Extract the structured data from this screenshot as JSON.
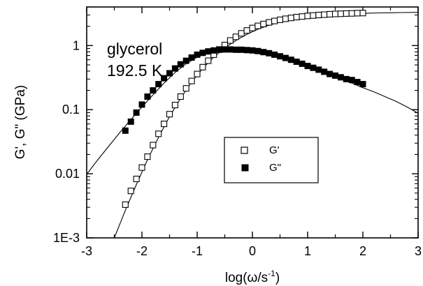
{
  "chart_data": {
    "type": "scatter",
    "xlabel": "log(ω/s",
    "xlabel_sup": "-1",
    "xlabel_close": ")",
    "ylabel": "G', G\" (GPa)",
    "xlim": [
      -3,
      3
    ],
    "ylim": [
      0.001,
      4
    ],
    "yscale": "log",
    "grid": false,
    "x_ticks": [
      -3,
      -2,
      -1,
      0,
      1,
      2,
      3
    ],
    "x_tick_labels": [
      "-3",
      "-2",
      "-1",
      "0",
      "1",
      "2",
      "3"
    ],
    "y_ticks": [
      0.001,
      0.01,
      0.1,
      1
    ],
    "y_tick_labels": [
      "1E-3",
      "0.01",
      "0.1",
      "1"
    ],
    "annotation": [
      "glycerol",
      "192.5 K"
    ],
    "legend": {
      "position": "center",
      "entries": [
        {
          "label": "G'",
          "marker": "open-square"
        },
        {
          "label": "G\"",
          "marker": "filled-square"
        }
      ]
    },
    "series": [
      {
        "name": "G'",
        "marker": "open-square",
        "x": [
          -2.3,
          -2.2,
          -2.1,
          -2.0,
          -1.9,
          -1.8,
          -1.7,
          -1.6,
          -1.5,
          -1.4,
          -1.3,
          -1.2,
          -1.1,
          -1.0,
          -0.9,
          -0.8,
          -0.7,
          -0.6,
          -0.5,
          -0.4,
          -0.3,
          -0.2,
          -0.1,
          0.0,
          0.1,
          0.2,
          0.3,
          0.4,
          0.5,
          0.6,
          0.7,
          0.8,
          0.9,
          1.0,
          1.1,
          1.2,
          1.3,
          1.4,
          1.5,
          1.6,
          1.7,
          1.8,
          1.9,
          2.0
        ],
        "y": [
          0.0033,
          0.0054,
          0.0083,
          0.0125,
          0.0185,
          0.028,
          0.042,
          0.06,
          0.085,
          0.118,
          0.16,
          0.215,
          0.28,
          0.36,
          0.46,
          0.58,
          0.72,
          0.87,
          1.02,
          1.2,
          1.37,
          1.55,
          1.72,
          1.88,
          2.03,
          2.17,
          2.3,
          2.42,
          2.52,
          2.62,
          2.7,
          2.78,
          2.84,
          2.9,
          2.95,
          3.0,
          3.04,
          3.08,
          3.11,
          3.14,
          3.16,
          3.18,
          3.2,
          3.22
        ]
      },
      {
        "name": "G\"",
        "marker": "filled-square",
        "x": [
          -2.3,
          -2.2,
          -2.1,
          -2.0,
          -1.9,
          -1.8,
          -1.7,
          -1.6,
          -1.5,
          -1.4,
          -1.3,
          -1.2,
          -1.1,
          -1.0,
          -0.9,
          -0.8,
          -0.7,
          -0.6,
          -0.5,
          -0.4,
          -0.3,
          -0.2,
          -0.1,
          0.0,
          0.1,
          0.2,
          0.3,
          0.4,
          0.5,
          0.6,
          0.7,
          0.8,
          0.9,
          1.0,
          1.1,
          1.2,
          1.3,
          1.4,
          1.5,
          1.6,
          1.7,
          1.8,
          1.9,
          2.0
        ],
        "y": [
          0.047,
          0.065,
          0.09,
          0.12,
          0.16,
          0.2,
          0.25,
          0.31,
          0.37,
          0.44,
          0.51,
          0.58,
          0.65,
          0.72,
          0.77,
          0.81,
          0.84,
          0.86,
          0.87,
          0.87,
          0.86,
          0.86,
          0.85,
          0.84,
          0.82,
          0.79,
          0.76,
          0.72,
          0.68,
          0.64,
          0.6,
          0.56,
          0.52,
          0.48,
          0.45,
          0.42,
          0.39,
          0.36,
          0.34,
          0.32,
          0.3,
          0.29,
          0.27,
          0.25
        ]
      }
    ],
    "fit_curves": [
      {
        "name": "fit-G'",
        "x": [
          -2.5,
          -2.3,
          -2.1,
          -1.9,
          -1.7,
          -1.5,
          -1.3,
          -1.1,
          -0.9,
          -0.7,
          -0.5,
          -0.3,
          -0.1,
          0.1,
          0.3,
          0.5,
          0.7,
          0.9,
          1.1,
          1.3,
          1.5,
          1.7,
          1.9,
          2.1,
          2.3,
          2.5,
          2.7,
          3.0
        ],
        "y": [
          0.001,
          0.0027,
          0.0068,
          0.0165,
          0.037,
          0.078,
          0.15,
          0.27,
          0.44,
          0.66,
          0.92,
          1.2,
          1.5,
          1.8,
          2.08,
          2.32,
          2.53,
          2.7,
          2.84,
          2.95,
          3.04,
          3.11,
          3.16,
          3.2,
          3.23,
          3.25,
          3.27,
          3.3
        ]
      },
      {
        "name": "fit-G\"",
        "x": [
          -3.0,
          -2.8,
          -2.6,
          -2.4,
          -2.2,
          -2.0,
          -1.8,
          -1.6,
          -1.4,
          -1.2,
          -1.0,
          -0.8,
          -0.6,
          -0.4,
          -0.2,
          0.0,
          0.2,
          0.4,
          0.6,
          0.8,
          1.0,
          1.2,
          1.4,
          1.6,
          1.8,
          2.0,
          2.2,
          2.4,
          2.6,
          2.8,
          3.0
        ],
        "y": [
          0.0098,
          0.0165,
          0.027,
          0.044,
          0.07,
          0.11,
          0.17,
          0.26,
          0.38,
          0.52,
          0.66,
          0.77,
          0.84,
          0.865,
          0.86,
          0.84,
          0.79,
          0.72,
          0.64,
          0.56,
          0.48,
          0.41,
          0.35,
          0.3,
          0.26,
          0.22,
          0.19,
          0.16,
          0.135,
          0.11,
          0.088
        ]
      }
    ]
  }
}
